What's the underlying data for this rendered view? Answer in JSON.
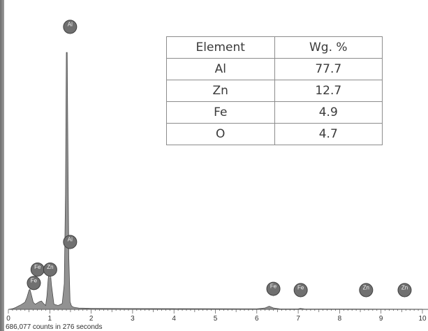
{
  "chart_data": {
    "type": "line",
    "title": "",
    "xlabel": "",
    "ylabel": "",
    "xlim": [
      0,
      10
    ],
    "ylim": [
      0,
      460000
    ],
    "x_ticks": [
      "0",
      "1",
      "2",
      "3",
      "4",
      "5",
      "6",
      "7",
      "8",
      "9",
      "10"
    ],
    "grid": false,
    "spectrum": {
      "x": [
        0.0,
        0.1,
        0.18,
        0.25,
        0.3,
        0.35,
        0.4,
        0.45,
        0.5,
        0.52,
        0.55,
        0.6,
        0.65,
        0.7,
        0.75,
        0.8,
        0.85,
        0.9,
        0.93,
        0.96,
        1.0,
        1.04,
        1.1,
        1.2,
        1.3,
        1.35,
        1.38,
        1.4,
        1.42,
        1.44,
        1.46,
        1.49,
        1.52,
        1.55,
        1.6,
        1.7,
        2.0,
        3.0,
        4.0,
        5.0,
        6.0,
        6.2,
        6.3,
        6.4,
        6.55,
        7.0,
        7.05,
        7.15,
        8.0,
        9.0,
        10.0
      ],
      "y": [
        0,
        1000,
        3000,
        5500,
        7000,
        9000,
        11000,
        19000,
        30000,
        31000,
        24000,
        11000,
        8000,
        10000,
        12000,
        13000,
        9000,
        6000,
        20000,
        46000,
        70000,
        38000,
        8000,
        6000,
        9000,
        40000,
        180000,
        400000,
        400000,
        230000,
        80000,
        12000,
        6000,
        4000,
        3000,
        2000,
        1500,
        1200,
        1000,
        900,
        800,
        2200,
        4800,
        2200,
        800,
        700,
        1500,
        700,
        500,
        400,
        300
      ]
    },
    "peak_markers": [
      {
        "label": "Al",
        "x": 1.49,
        "y": 440000
      },
      {
        "label": "Al",
        "x": 1.49,
        "y": 105000
      },
      {
        "label": "Fe",
        "x": 0.705,
        "y": 62000
      },
      {
        "label": "Zn",
        "x": 1.01,
        "y": 62000
      },
      {
        "label": "Fe",
        "x": 0.615,
        "y": 41000
      },
      {
        "label": "Fe",
        "x": 6.4,
        "y": 32000
      },
      {
        "label": "Fe",
        "x": 7.06,
        "y": 30000
      },
      {
        "label": "Zn",
        "x": 8.64,
        "y": 30000
      },
      {
        "label": "Zn",
        "x": 9.57,
        "y": 30000
      }
    ],
    "colors": {
      "fill": "#8c8c8c",
      "stroke": "#4a4a4a",
      "marker_fill": "#707070",
      "marker_stroke": "#3f3f3f",
      "axis": "#555555"
    }
  },
  "table": {
    "headers": [
      "Element",
      "Wg. %"
    ],
    "rows": [
      [
        "Al",
        "77.7"
      ],
      [
        "Zn",
        "12.7"
      ],
      [
        "Fe",
        "4.9"
      ],
      [
        "O",
        "4.7"
      ]
    ]
  },
  "footer": {
    "counts_text": "686,077 counts in 276 seconds"
  }
}
